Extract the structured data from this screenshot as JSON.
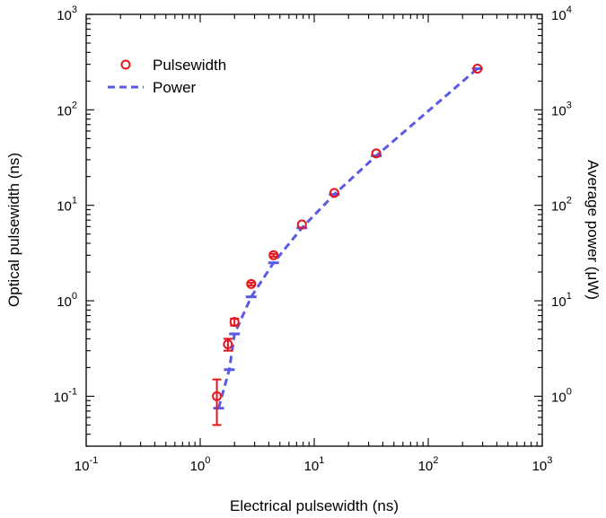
{
  "chart_data": {
    "type": "scatter",
    "title": "",
    "xlabel": "Electrical pulsewidth (ns)",
    "ylabel_left": "Optical pulsewidth (ns)",
    "ylabel_right": "Average power (μW)",
    "xscale": "log",
    "yscale_left": "log",
    "yscale_right": "log",
    "xlim": [
      0.1,
      1000
    ],
    "ylim_left": [
      0.03,
      1000
    ],
    "ylim_right": [
      0.3,
      10000
    ],
    "x_ticks": [
      {
        "value": 0.1,
        "base": "10",
        "exp": "-1"
      },
      {
        "value": 1,
        "base": "10",
        "exp": "0"
      },
      {
        "value": 10,
        "base": "10",
        "exp": "1"
      },
      {
        "value": 100,
        "base": "10",
        "exp": "2"
      },
      {
        "value": 1000,
        "base": "10",
        "exp": "3"
      }
    ],
    "y_ticks_left": [
      {
        "value": 0.1,
        "base": "10",
        "exp": "-1"
      },
      {
        "value": 1,
        "base": "10",
        "exp": "0"
      },
      {
        "value": 10,
        "base": "10",
        "exp": "1"
      },
      {
        "value": 100,
        "base": "10",
        "exp": "2"
      },
      {
        "value": 1000,
        "base": "10",
        "exp": "3"
      }
    ],
    "y_ticks_right": [
      {
        "value": 1,
        "base": "10",
        "exp": "0"
      },
      {
        "value": 10,
        "base": "10",
        "exp": "1"
      },
      {
        "value": 100,
        "base": "10",
        "exp": "2"
      },
      {
        "value": 1000,
        "base": "10",
        "exp": "3"
      },
      {
        "value": 10000,
        "base": "10",
        "exp": "4"
      }
    ],
    "legend_position": "top-left",
    "series": [
      {
        "name": "Pulsewidth",
        "axis": "left",
        "style": "open-circle",
        "color": "#e8141c",
        "x": [
          1.4,
          1.75,
          2.0,
          2.8,
          4.4,
          7.8,
          15,
          35,
          270
        ],
        "y": [
          0.1,
          0.35,
          0.6,
          1.5,
          3.0,
          6.3,
          13.5,
          35,
          270
        ],
        "yerr_low": [
          0.05,
          0.3,
          0.55,
          1.45,
          2.9,
          6.1,
          13.3,
          34.5,
          268
        ],
        "yerr_high": [
          0.15,
          0.4,
          0.65,
          1.55,
          3.1,
          6.5,
          13.7,
          35.5,
          272
        ]
      },
      {
        "name": "Power",
        "axis": "right",
        "style": "dashed-line",
        "color": "#5a5ae6",
        "x": [
          1.45,
          1.8,
          2.0,
          2.8,
          4.4,
          7.8,
          15,
          35,
          270
        ],
        "y": [
          0.75,
          1.9,
          4.5,
          11,
          25,
          58,
          130,
          330,
          2700
        ]
      }
    ]
  }
}
